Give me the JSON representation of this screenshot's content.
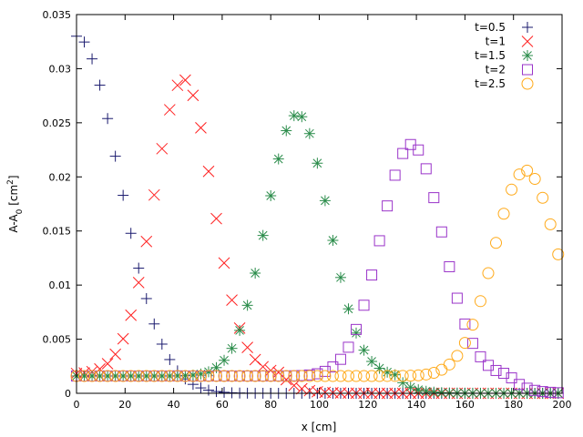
{
  "chart_data": {
    "type": "scatter",
    "xlabel": "x [cm]",
    "ylabel": {
      "pre": "A-A",
      "sub": "0",
      "mid": " [cm",
      "sup": "2",
      "post": "]"
    },
    "xlim": [
      0,
      200
    ],
    "ylim": [
      0,
      0.035
    ],
    "x_ticks": [
      "0",
      "20",
      "40",
      "60",
      "80",
      "100",
      "120",
      "140",
      "160",
      "180",
      "200"
    ],
    "y_ticks": [
      "0",
      "0.005",
      "0.01",
      "0.015",
      "0.02",
      "0.025",
      "0.03",
      "0.035"
    ],
    "grid": false,
    "legend_position": "top-right",
    "series": [
      {
        "name": "t=0.5",
        "marker": "plus",
        "color": "#1a1a6e",
        "peak_x": 0,
        "peak": 0.033,
        "width": 25,
        "baseline": 0
      },
      {
        "name": "t=1",
        "marker": "cross",
        "color": "#ff2020",
        "peak_x": 44,
        "peak": 0.029,
        "width": 17,
        "baseline": 0.0018
      },
      {
        "name": "t=1.5",
        "marker": "star",
        "color": "#2a8c4a",
        "peak_x": 91,
        "peak": 0.0258,
        "width": 18,
        "baseline": 0.0016
      },
      {
        "name": "t=2",
        "marker": "square",
        "color": "#9a34c9",
        "peak_x": 138,
        "peak": 0.023,
        "width": 18,
        "baseline": 0.0016
      },
      {
        "name": "t=2.5",
        "marker": "circle",
        "color": "#ffaa1a",
        "peak_x": 185,
        "peak": 0.0206,
        "width": 18.5,
        "baseline": 0.0016
      }
    ]
  }
}
